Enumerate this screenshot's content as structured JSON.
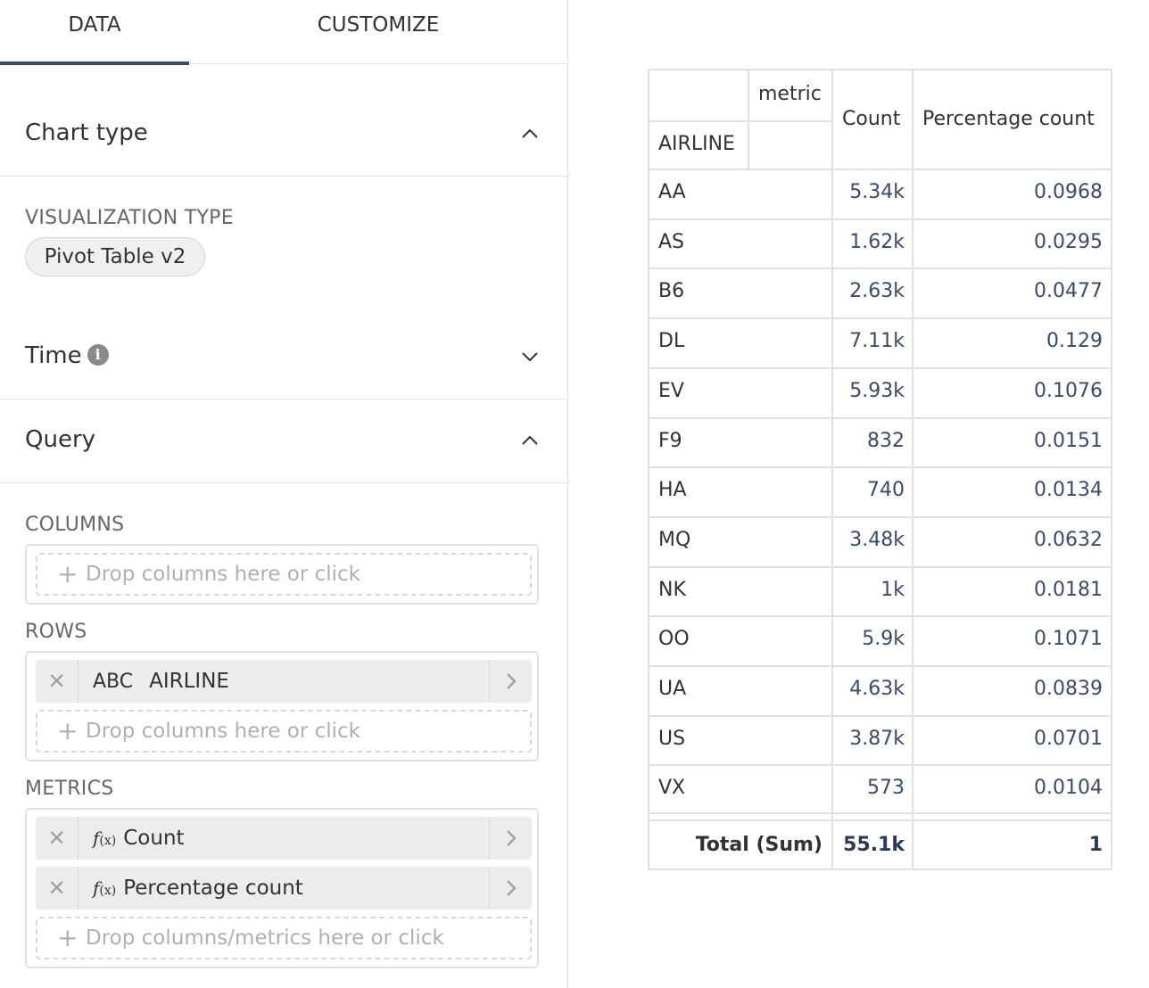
{
  "tabs": {
    "data": "DATA",
    "customize": "CUSTOMIZE"
  },
  "sections": {
    "chart_type": "Chart type",
    "time": "Time",
    "query": "Query"
  },
  "visualization": {
    "label": "VISUALIZATION TYPE",
    "value": "Pivot Table v2"
  },
  "query": {
    "columns_label": "COLUMNS",
    "rows_label": "ROWS",
    "metrics_label": "METRICS",
    "drop_columns": "Drop columns here or click",
    "drop_metrics": "Drop columns/metrics here or click",
    "row_item": {
      "type": "ABC",
      "name": "AIRLINE"
    },
    "metric_items": [
      {
        "fx": "f",
        "name": "Count"
      },
      {
        "fx": "f",
        "name": "Percentage count"
      }
    ]
  },
  "pivot": {
    "metric_header": "metric",
    "row_header": "AIRLINE",
    "columns": [
      "Count",
      "Percentage count"
    ],
    "rows": [
      {
        "airline": "AA",
        "count": "5.34k",
        "pct": "0.0968"
      },
      {
        "airline": "AS",
        "count": "1.62k",
        "pct": "0.0295"
      },
      {
        "airline": "B6",
        "count": "2.63k",
        "pct": "0.0477"
      },
      {
        "airline": "DL",
        "count": "7.11k",
        "pct": "0.129"
      },
      {
        "airline": "EV",
        "count": "5.93k",
        "pct": "0.1076"
      },
      {
        "airline": "F9",
        "count": "832",
        "pct": "0.0151"
      },
      {
        "airline": "HA",
        "count": "740",
        "pct": "0.0134"
      },
      {
        "airline": "MQ",
        "count": "3.48k",
        "pct": "0.0632"
      },
      {
        "airline": "NK",
        "count": "1k",
        "pct": "0.0181"
      },
      {
        "airline": "OO",
        "count": "5.9k",
        "pct": "0.1071"
      },
      {
        "airline": "UA",
        "count": "4.63k",
        "pct": "0.0839"
      },
      {
        "airline": "US",
        "count": "3.87k",
        "pct": "0.0701"
      },
      {
        "airline": "VX",
        "count": "573",
        "pct": "0.0104"
      }
    ],
    "total": {
      "label": "Total (Sum)",
      "count": "55.1k",
      "pct": "1"
    }
  },
  "icons": {
    "chevron_up": "chevron-up-icon",
    "chevron_down": "chevron-down-icon",
    "info": "info-icon",
    "close": "close-icon",
    "chevron_right": "chevron-right-icon",
    "plus": "plus-icon"
  },
  "colors": {
    "accent": "#3b4a6b",
    "number_text": "#3b4a6b"
  }
}
